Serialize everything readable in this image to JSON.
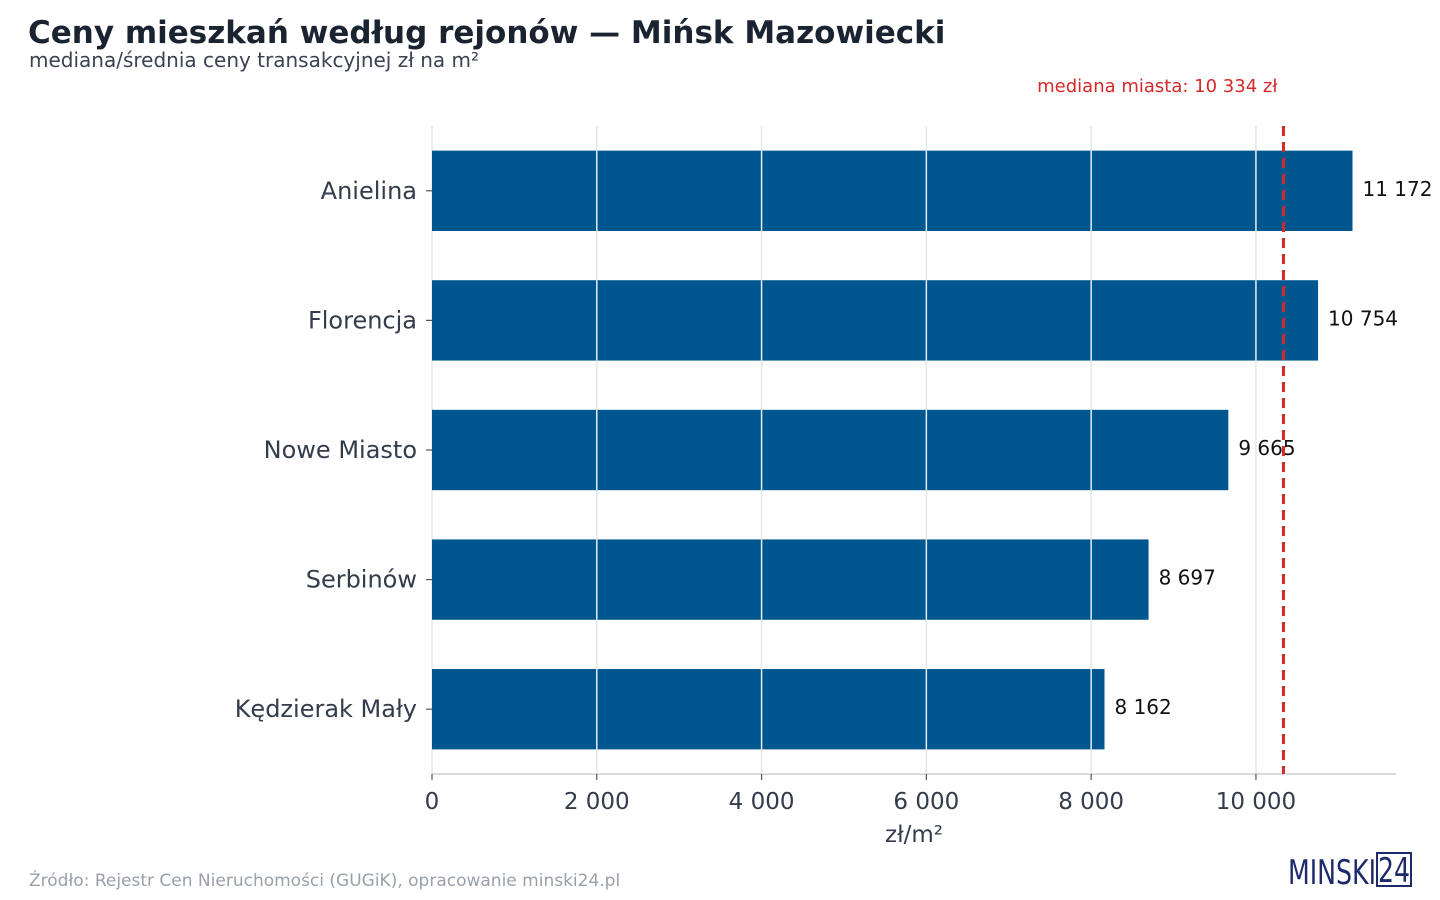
{
  "chart_data": {
    "type": "bar",
    "orientation": "horizontal",
    "title": "Ceny mieszkań według rejonów — Mińsk Mazowiecki",
    "subtitle": "mediana/średnia ceny transakcyjnej zł na m²",
    "xlabel": "zł/m²",
    "xlim": [
      0,
      11700
    ],
    "x_ticks": [
      0,
      2000,
      4000,
      6000,
      8000,
      10000
    ],
    "x_tick_labels": [
      "0",
      "2 000",
      "4 000",
      "6 000",
      "8 000",
      "10 000"
    ],
    "grid": "vertical",
    "bar_color": "#00568f",
    "categories": [
      "Anielina",
      "Florencja",
      "Nowe Miasto",
      "Serbinów",
      "Kędzierak Mały"
    ],
    "values": [
      11172,
      10754,
      9665,
      8697,
      8162
    ],
    "value_labels": [
      "11 172",
      "10 754",
      "9 665",
      "8 697",
      "8 162"
    ],
    "reference_line": {
      "value": 10334,
      "label": "mediana miasta: 10 334 zł",
      "color": "#d62828",
      "style": "dashed"
    }
  },
  "footer": {
    "source": "Źródło: Rejestr Cen Nieruchomości (GUGiK), opracowanie minski24.pl"
  },
  "logo": {
    "text_main": "MINSKI",
    "text_box": "24",
    "color": "#1d2a6b"
  }
}
